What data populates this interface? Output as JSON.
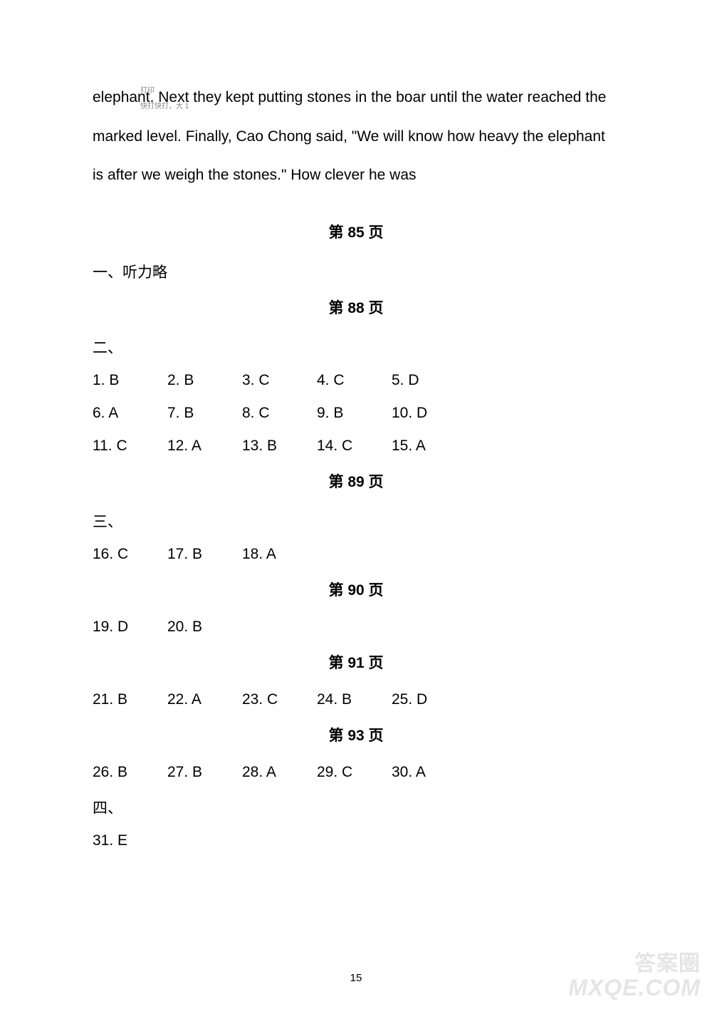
{
  "paragraph": "elephant. Next they kept putting stones in the boar until the water reached the marked level. Finally, Cao Chong said, \"We will know how heavy the elephant is after we weigh the stones.\"  How clever he was",
  "tiny_text_1": "打印",
  "tiny_text_2": "快打快打，大 1",
  "headers": {
    "p85": "第 85 页",
    "p88": "第 88 页",
    "p89": "第 89 页",
    "p90": "第 90 页",
    "p91": "第 91 页",
    "p93": "第 93 页"
  },
  "sections": {
    "one": "一、听力略",
    "two": "二、",
    "three": "三、",
    "four": "四、"
  },
  "answers": {
    "row1": [
      "1. B",
      "2. B",
      "3. C",
      "4. C",
      "5. D"
    ],
    "row2": [
      "6. A",
      "7. B",
      "8. C",
      "9. B",
      "10. D"
    ],
    "row3": [
      "11. C",
      "12. A",
      "13. B",
      "14. C",
      "15. A"
    ],
    "row4": [
      "16. C",
      "17. B",
      "18. A"
    ],
    "row5": [
      "19. D",
      "20. B"
    ],
    "row6": [
      "21. B",
      "22. A",
      "23. C",
      "24. B",
      "25. D"
    ],
    "row7": [
      "26. B",
      "27. B",
      "28. A",
      "29. C",
      "30. A"
    ],
    "row8": [
      "31. E"
    ]
  },
  "page_number": "15",
  "watermark_cn": "答案圈",
  "watermark_en": "MXQE.COM"
}
